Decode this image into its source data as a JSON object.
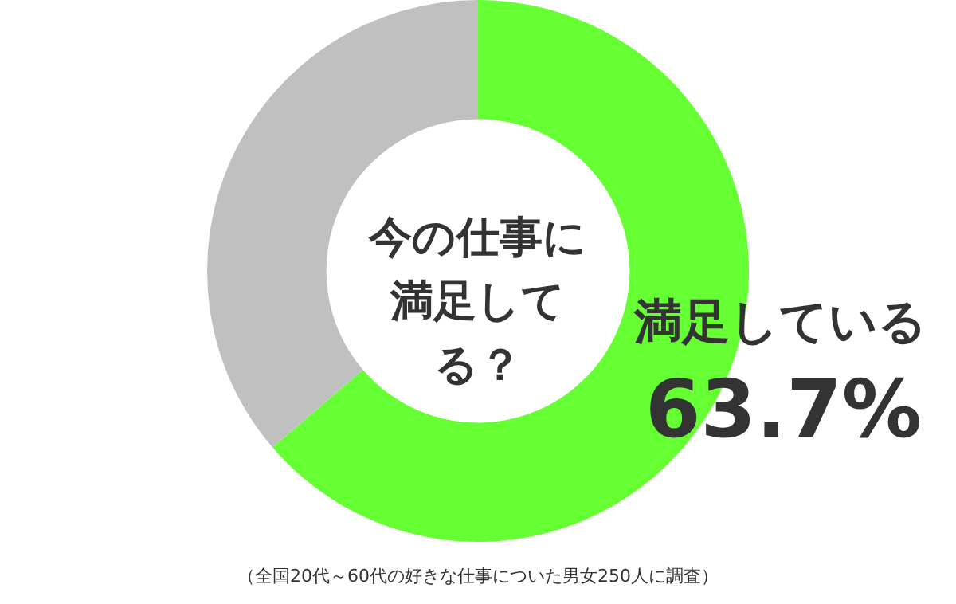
{
  "chart_data": {
    "type": "donut",
    "title": "今の仕事に満足してる？",
    "categories": [
      "満足している",
      null
    ],
    "values": [
      63.7,
      36.3
    ],
    "colors": [
      "#66ff33",
      "#c0c0c0"
    ],
    "value_labels": [
      "63.7%",
      null
    ],
    "annotations": [
      "（全国20代～60代の好きな仕事についた男女250人に調査）"
    ]
  }
}
